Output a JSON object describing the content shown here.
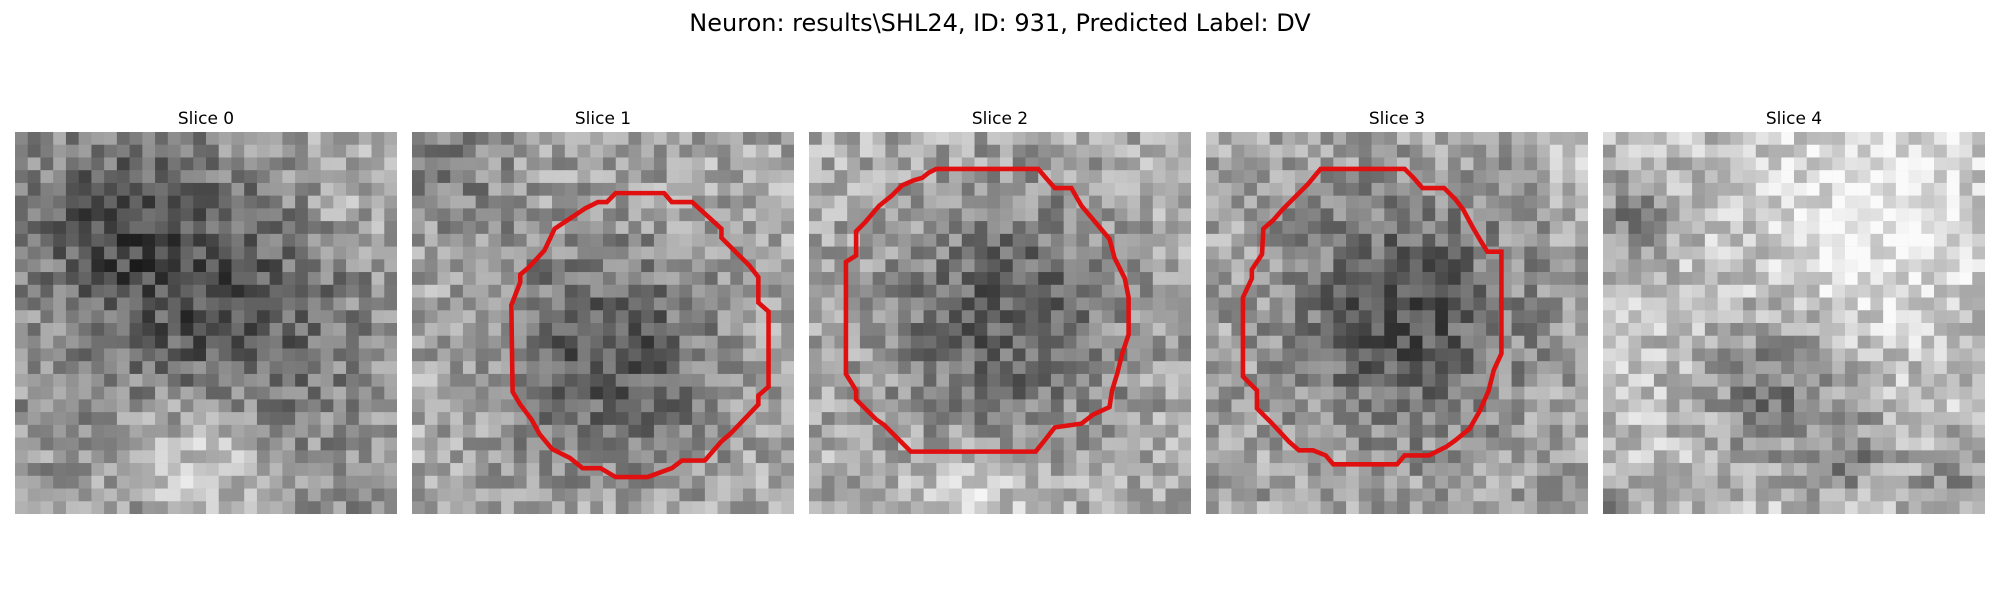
{
  "title": "Neuron: results\\SHL24, ID: 931, Predicted Label: DV",
  "panels": [
    {
      "label": "Slice 0",
      "seed": 17,
      "has_contour": false
    },
    {
      "label": "Slice 1",
      "seed": 29,
      "has_contour": true
    },
    {
      "label": "Slice 2",
      "seed": 41,
      "has_contour": true
    },
    {
      "label": "Slice 3",
      "seed": 53,
      "has_contour": true
    },
    {
      "label": "Slice 4",
      "seed": 67,
      "has_contour": false
    }
  ],
  "colors": {
    "contour": "#e01010",
    "background": "#ffffff"
  }
}
